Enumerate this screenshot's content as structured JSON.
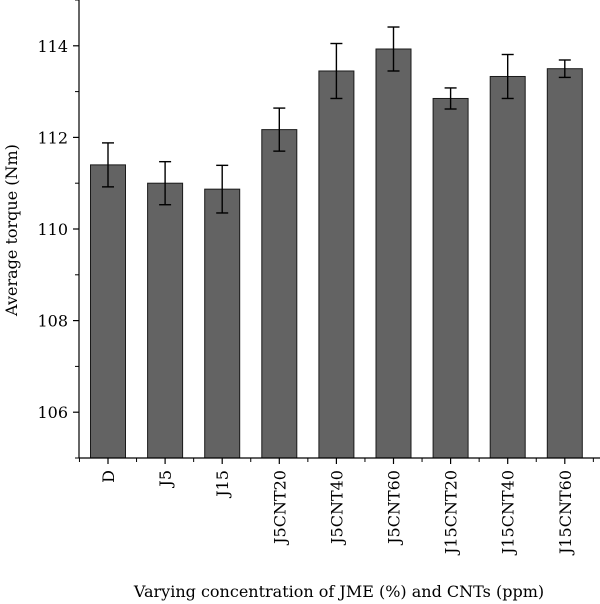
{
  "chart_data": {
    "type": "bar",
    "title": "",
    "xlabel": "Varying concentration of JME (%) and CNTs (ppm)",
    "ylabel": "Average torque (Nm)",
    "ylim": [
      105,
      115
    ],
    "yticks": [
      "106",
      "108",
      "110",
      "112",
      "114"
    ],
    "grid": false,
    "categories": [
      "D",
      "J5",
      "J15",
      "J5CNT20",
      "J5CNT40",
      "J5CNT60",
      "J15CNT20",
      "J15CNT40",
      "J15CNT60"
    ],
    "values": [
      111.4,
      111.0,
      110.87,
      112.17,
      113.45,
      113.93,
      112.85,
      113.33,
      113.5
    ],
    "errors": [
      0.48,
      0.47,
      0.52,
      0.47,
      0.6,
      0.48,
      0.23,
      0.48,
      0.19
    ],
    "colors": {
      "bar": "#636363",
      "axis": "#000000"
    }
  }
}
